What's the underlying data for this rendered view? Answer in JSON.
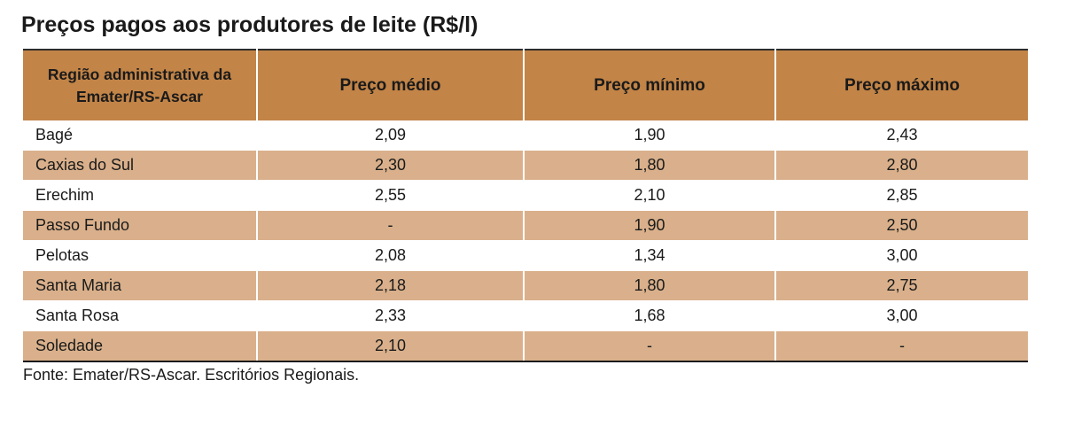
{
  "title": "Preços pagos aos produtores de leite (R$/l)",
  "table": {
    "headers": [
      "Região administrativa da Emater/RS-Ascar",
      "Preço médio",
      "Preço mínimo",
      "Preço máximo"
    ],
    "rows": [
      {
        "region": "Bagé",
        "avg": "2,09",
        "min": "1,90",
        "max": "2,43"
      },
      {
        "region": "Caxias do Sul",
        "avg": "2,30",
        "min": "1,80",
        "max": "2,80"
      },
      {
        "region": "Erechim",
        "avg": "2,55",
        "min": "2,10",
        "max": "2,85"
      },
      {
        "region": "Passo Fundo",
        "avg": "-",
        "min": "1,90",
        "max": "2,50"
      },
      {
        "region": "Pelotas",
        "avg": "2,08",
        "min": "1,34",
        "max": "3,00"
      },
      {
        "region": "Santa Maria",
        "avg": "2,18",
        "min": "1,80",
        "max": "2,75"
      },
      {
        "region": "Santa Rosa",
        "avg": "2,33",
        "min": "1,68",
        "max": "3,00"
      },
      {
        "region": "Soledade",
        "avg": "2,10",
        "min": "-",
        "max": "-"
      }
    ]
  },
  "source": "Fonte: Emater/RS-Ascar. Escritórios Regionais.",
  "colors": {
    "header_bg": "#c28447",
    "shaded_row_bg": "#d9b08b"
  }
}
